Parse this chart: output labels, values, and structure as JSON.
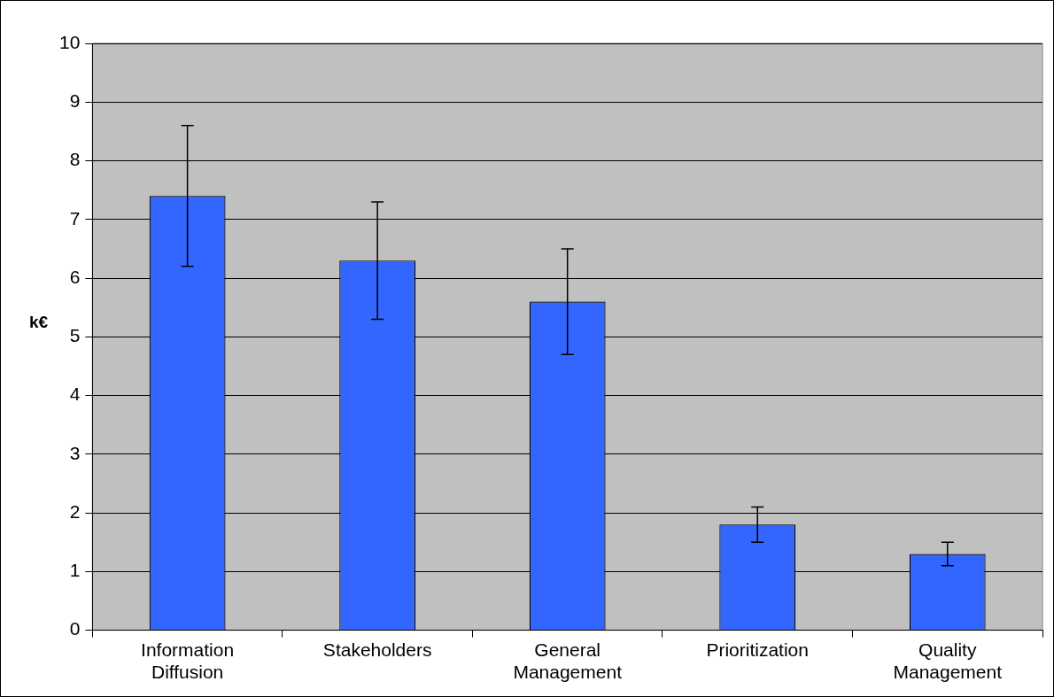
{
  "chart_data": {
    "type": "bar",
    "categories": [
      "Information Diffusion",
      "Stakeholders",
      "General Management",
      "Prioritization",
      "Quality Management"
    ],
    "values": [
      7.4,
      6.3,
      5.6,
      1.8,
      1.3
    ],
    "errors": [
      1.2,
      1.0,
      0.9,
      0.3,
      0.2
    ],
    "color": "#3366ff",
    "ylabel": "k€",
    "ylim": [
      0,
      10
    ],
    "yticks": [
      0,
      1,
      2,
      3,
      4,
      5,
      6,
      7,
      8,
      9,
      10
    ],
    "grid": "y",
    "legend": false
  }
}
